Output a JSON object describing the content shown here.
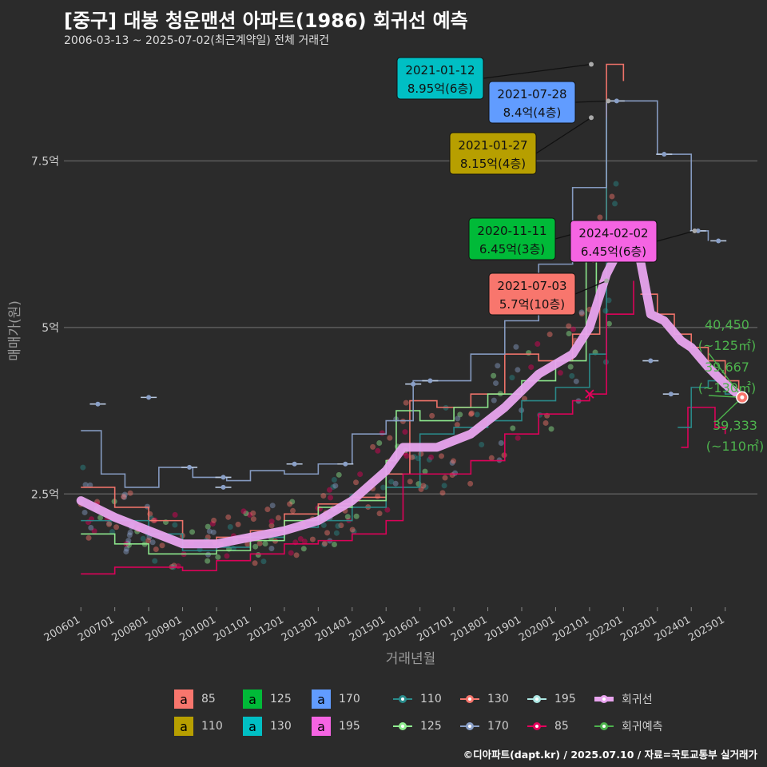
{
  "title": "[중구] 대봉 청운맨션 아파트(1986) 회귀선 예측",
  "subtitle": "2006-03-13 ~ 2025-07-02(최근계약일) 전체 거래건",
  "footer": "©디아파트(dapt.kr) / 2025.07.10 / 자료=국토교통부 실거래가",
  "colors": {
    "s85": "#f8766d",
    "s110": "#b79f00",
    "s125": "#00ba38",
    "s130": "#00bfc4",
    "s170": "#619cff",
    "s195": "#f564e3",
    "pt110": "#2a8c8c",
    "pt125": "#90ee90",
    "pt130": "#f8766d",
    "pt170": "#8aa0c8",
    "pt195": "#aee8e4",
    "pt85": "#e6005c",
    "regression": "#e8a4ee",
    "forecast": "#4db34d"
  },
  "chart_data": {
    "type": "line",
    "xlabel": "거래년월",
    "ylabel": "매매가(원)",
    "x_ticks": [
      "200601",
      "200701",
      "200801",
      "200901",
      "201001",
      "201101",
      "201201",
      "201301",
      "201401",
      "201501",
      "201601",
      "201701",
      "201801",
      "201901",
      "202001",
      "202101",
      "202201",
      "202301",
      "202401",
      "202501"
    ],
    "y_ticks": [
      "2.5억",
      "5억",
      "7.5억"
    ],
    "ylim": [
      0.8,
      9.1
    ],
    "grid": true,
    "series": [
      {
        "name": "85",
        "key": "s85",
        "points": [
          [
            2006.0,
            2.6
          ],
          [
            2007.0,
            2.3
          ],
          [
            2008.0,
            2.1
          ],
          [
            2009.0,
            1.8
          ],
          [
            2010.0,
            1.85
          ],
          [
            2011.0,
            1.95
          ],
          [
            2012.0,
            2.2
          ],
          [
            2013.0,
            2.35
          ],
          [
            2014.0,
            2.45
          ],
          [
            2015.0,
            2.8
          ],
          [
            2015.7,
            3.9
          ],
          [
            2016.5,
            3.8
          ],
          [
            2017.5,
            4.0
          ],
          [
            2018.5,
            4.6
          ],
          [
            2019.5,
            4.5
          ],
          [
            2020.5,
            4.9
          ],
          [
            2021.3,
            5.7
          ],
          [
            2021.5,
            8.95
          ],
          [
            2022.0,
            8.7
          ]
        ]
      },
      {
        "name": "110",
        "key": "pt110",
        "points": [
          [
            2006.0,
            2.1
          ],
          [
            2007.0,
            2.1
          ],
          [
            2008.0,
            1.9
          ],
          [
            2009.0,
            1.65
          ],
          [
            2010.0,
            1.7
          ],
          [
            2011.0,
            1.85
          ],
          [
            2012.0,
            2.0
          ],
          [
            2013.0,
            2.1
          ],
          [
            2014.0,
            2.3
          ],
          [
            2015.0,
            2.6
          ],
          [
            2016.0,
            3.4
          ],
          [
            2017.0,
            3.5
          ],
          [
            2018.0,
            3.6
          ],
          [
            2019.0,
            3.9
          ],
          [
            2020.0,
            4.1
          ],
          [
            2021.0,
            4.6
          ],
          [
            2021.5,
            8.15
          ]
        ]
      },
      {
        "name": "125",
        "key": "pt125",
        "points": [
          [
            2006.0,
            1.9
          ],
          [
            2007.0,
            1.75
          ],
          [
            2008.0,
            1.6
          ],
          [
            2009.0,
            1.6
          ],
          [
            2010.0,
            1.65
          ],
          [
            2011.0,
            1.8
          ],
          [
            2012.0,
            2.1
          ],
          [
            2013.0,
            2.3
          ],
          [
            2014.0,
            2.4
          ],
          [
            2015.0,
            3.0
          ],
          [
            2015.3,
            3.75
          ],
          [
            2016.0,
            3.6
          ],
          [
            2017.0,
            3.8
          ],
          [
            2018.0,
            4.0
          ],
          [
            2019.0,
            4.2
          ],
          [
            2020.0,
            4.5
          ],
          [
            2020.9,
            6.45
          ],
          [
            2021.2,
            5.4
          ]
        ]
      },
      {
        "name": "170",
        "key": "pt170",
        "points": [
          [
            2006.0,
            3.45
          ],
          [
            2006.6,
            2.8
          ],
          [
            2007.3,
            2.6
          ],
          [
            2008.3,
            2.9
          ],
          [
            2009.3,
            2.75
          ],
          [
            2010.3,
            2.7
          ],
          [
            2011.0,
            2.85
          ],
          [
            2012.0,
            2.8
          ],
          [
            2013.0,
            2.95
          ],
          [
            2014.0,
            3.4
          ],
          [
            2015.0,
            3.6
          ],
          [
            2015.8,
            4.2
          ],
          [
            2016.5,
            4.2
          ],
          [
            2017.5,
            4.6
          ],
          [
            2018.5,
            5.1
          ],
          [
            2019.5,
            5.95
          ],
          [
            2020.5,
            7.1
          ],
          [
            2021.5,
            8.4
          ],
          [
            2023.0,
            7.6
          ],
          [
            2024.0,
            6.45
          ],
          [
            2024.5,
            6.3
          ]
        ]
      },
      {
        "name": "85",
        "key": "pt85",
        "points": [
          [
            2006.0,
            1.3
          ],
          [
            2007.0,
            1.4
          ],
          [
            2008.0,
            1.4
          ],
          [
            2009.0,
            1.35
          ],
          [
            2010.0,
            1.5
          ],
          [
            2011.0,
            1.6
          ],
          [
            2012.0,
            1.75
          ],
          [
            2013.0,
            1.8
          ],
          [
            2014.0,
            1.9
          ],
          [
            2015.0,
            2.1
          ],
          [
            2015.5,
            2.8
          ],
          [
            2016.5,
            2.8
          ],
          [
            2017.5,
            3.0
          ],
          [
            2018.5,
            3.4
          ],
          [
            2019.5,
            3.7
          ],
          [
            2020.5,
            3.9
          ],
          [
            2021.0,
            4.0
          ],
          [
            2021.5,
            5.2
          ],
          [
            2022.3,
            5.7
          ]
        ]
      },
      {
        "name": "85",
        "key": "pt85",
        "points": [
          [
            2023.7,
            3.2
          ],
          [
            2023.9,
            3.8
          ],
          [
            2024.5,
            3.8
          ],
          [
            2024.7,
            3.5
          ],
          [
            2025.0,
            3.4
          ]
        ]
      },
      {
        "name": "110",
        "key": "pt110",
        "points": [
          [
            2023.6,
            3.5
          ],
          [
            2024.0,
            4.1
          ],
          [
            2024.5,
            4.2
          ],
          [
            2025.0,
            4.0
          ],
          [
            2025.3,
            3.95
          ]
        ]
      },
      {
        "name": "130",
        "key": "s85",
        "points": [
          [
            2022.5,
            5.5
          ],
          [
            2023.0,
            5.2
          ],
          [
            2023.5,
            4.9
          ],
          [
            2024.0,
            4.7
          ],
          [
            2024.5,
            4.5
          ],
          [
            2025.0,
            4.2
          ],
          [
            2025.4,
            3.9
          ]
        ]
      }
    ],
    "regression": [
      [
        2006.0,
        2.4
      ],
      [
        2007.0,
        2.15
      ],
      [
        2008.0,
        1.95
      ],
      [
        2009.0,
        1.75
      ],
      [
        2010.0,
        1.75
      ],
      [
        2011.0,
        1.85
      ],
      [
        2012.0,
        1.95
      ],
      [
        2013.0,
        2.1
      ],
      [
        2014.0,
        2.4
      ],
      [
        2015.0,
        2.85
      ],
      [
        2015.5,
        3.2
      ],
      [
        2016.5,
        3.2
      ],
      [
        2017.5,
        3.4
      ],
      [
        2018.5,
        3.8
      ],
      [
        2019.5,
        4.3
      ],
      [
        2020.5,
        4.6
      ],
      [
        2021.0,
        5.0
      ],
      [
        2021.5,
        5.8
      ],
      [
        2022.0,
        6.3
      ],
      [
        2022.5,
        6.0
      ],
      [
        2022.8,
        5.2
      ],
      [
        2023.2,
        5.1
      ],
      [
        2023.7,
        4.8
      ],
      [
        2024.0,
        4.7
      ],
      [
        2024.5,
        4.4
      ],
      [
        2025.0,
        4.15
      ],
      [
        2025.5,
        3.95
      ]
    ],
    "forecast": [
      {
        "value": "40,450",
        "area": "(~125㎡)",
        "y": 4.045
      },
      {
        "value": "39,667",
        "area": "(~130㎡)",
        "y": 3.967
      },
      {
        "value": "39,333",
        "area": "(~110㎡)",
        "y": 3.933
      }
    ],
    "annotations": [
      {
        "date": "2021-01-12",
        "price": "8.95억(6층)",
        "key": "s130",
        "x": 2021.05,
        "y": 8.95
      },
      {
        "date": "2021-07-28",
        "price": "8.4억(4층)",
        "key": "s170",
        "x": 2021.55,
        "y": 8.4
      },
      {
        "date": "2021-01-27",
        "price": "8.15억(4층)",
        "key": "s110",
        "x": 2021.05,
        "y": 8.15
      },
      {
        "date": "2020-11-11",
        "price": "6.45억(3층)",
        "key": "s125",
        "x": 2020.85,
        "y": 6.45
      },
      {
        "date": "2024-02-02",
        "price": "6.45억(6층)",
        "key": "s195",
        "x": 2024.1,
        "y": 6.45
      },
      {
        "date": "2021-07-03",
        "price": "5.7억(10층)",
        "key": "s85",
        "x": 2021.5,
        "y": 5.7
      }
    ]
  },
  "legend_fill": [
    {
      "label": "85",
      "key": "s85"
    },
    {
      "label": "110",
      "key": "s110"
    },
    {
      "label": "125",
      "key": "s125"
    },
    {
      "label": "130",
      "key": "s130"
    },
    {
      "label": "170",
      "key": "s170"
    },
    {
      "label": "195",
      "key": "s195"
    }
  ],
  "legend_swatch_glyph": "a",
  "legend_points": [
    {
      "label": "110",
      "key": "pt110"
    },
    {
      "label": "125",
      "key": "pt125"
    },
    {
      "label": "130",
      "key": "pt130"
    },
    {
      "label": "170",
      "key": "pt170"
    },
    {
      "label": "195",
      "key": "pt195"
    },
    {
      "label": "85",
      "key": "pt85"
    },
    {
      "label": "회귀선",
      "key": "regression"
    },
    {
      "label": "회귀예측",
      "key": "forecast"
    }
  ]
}
